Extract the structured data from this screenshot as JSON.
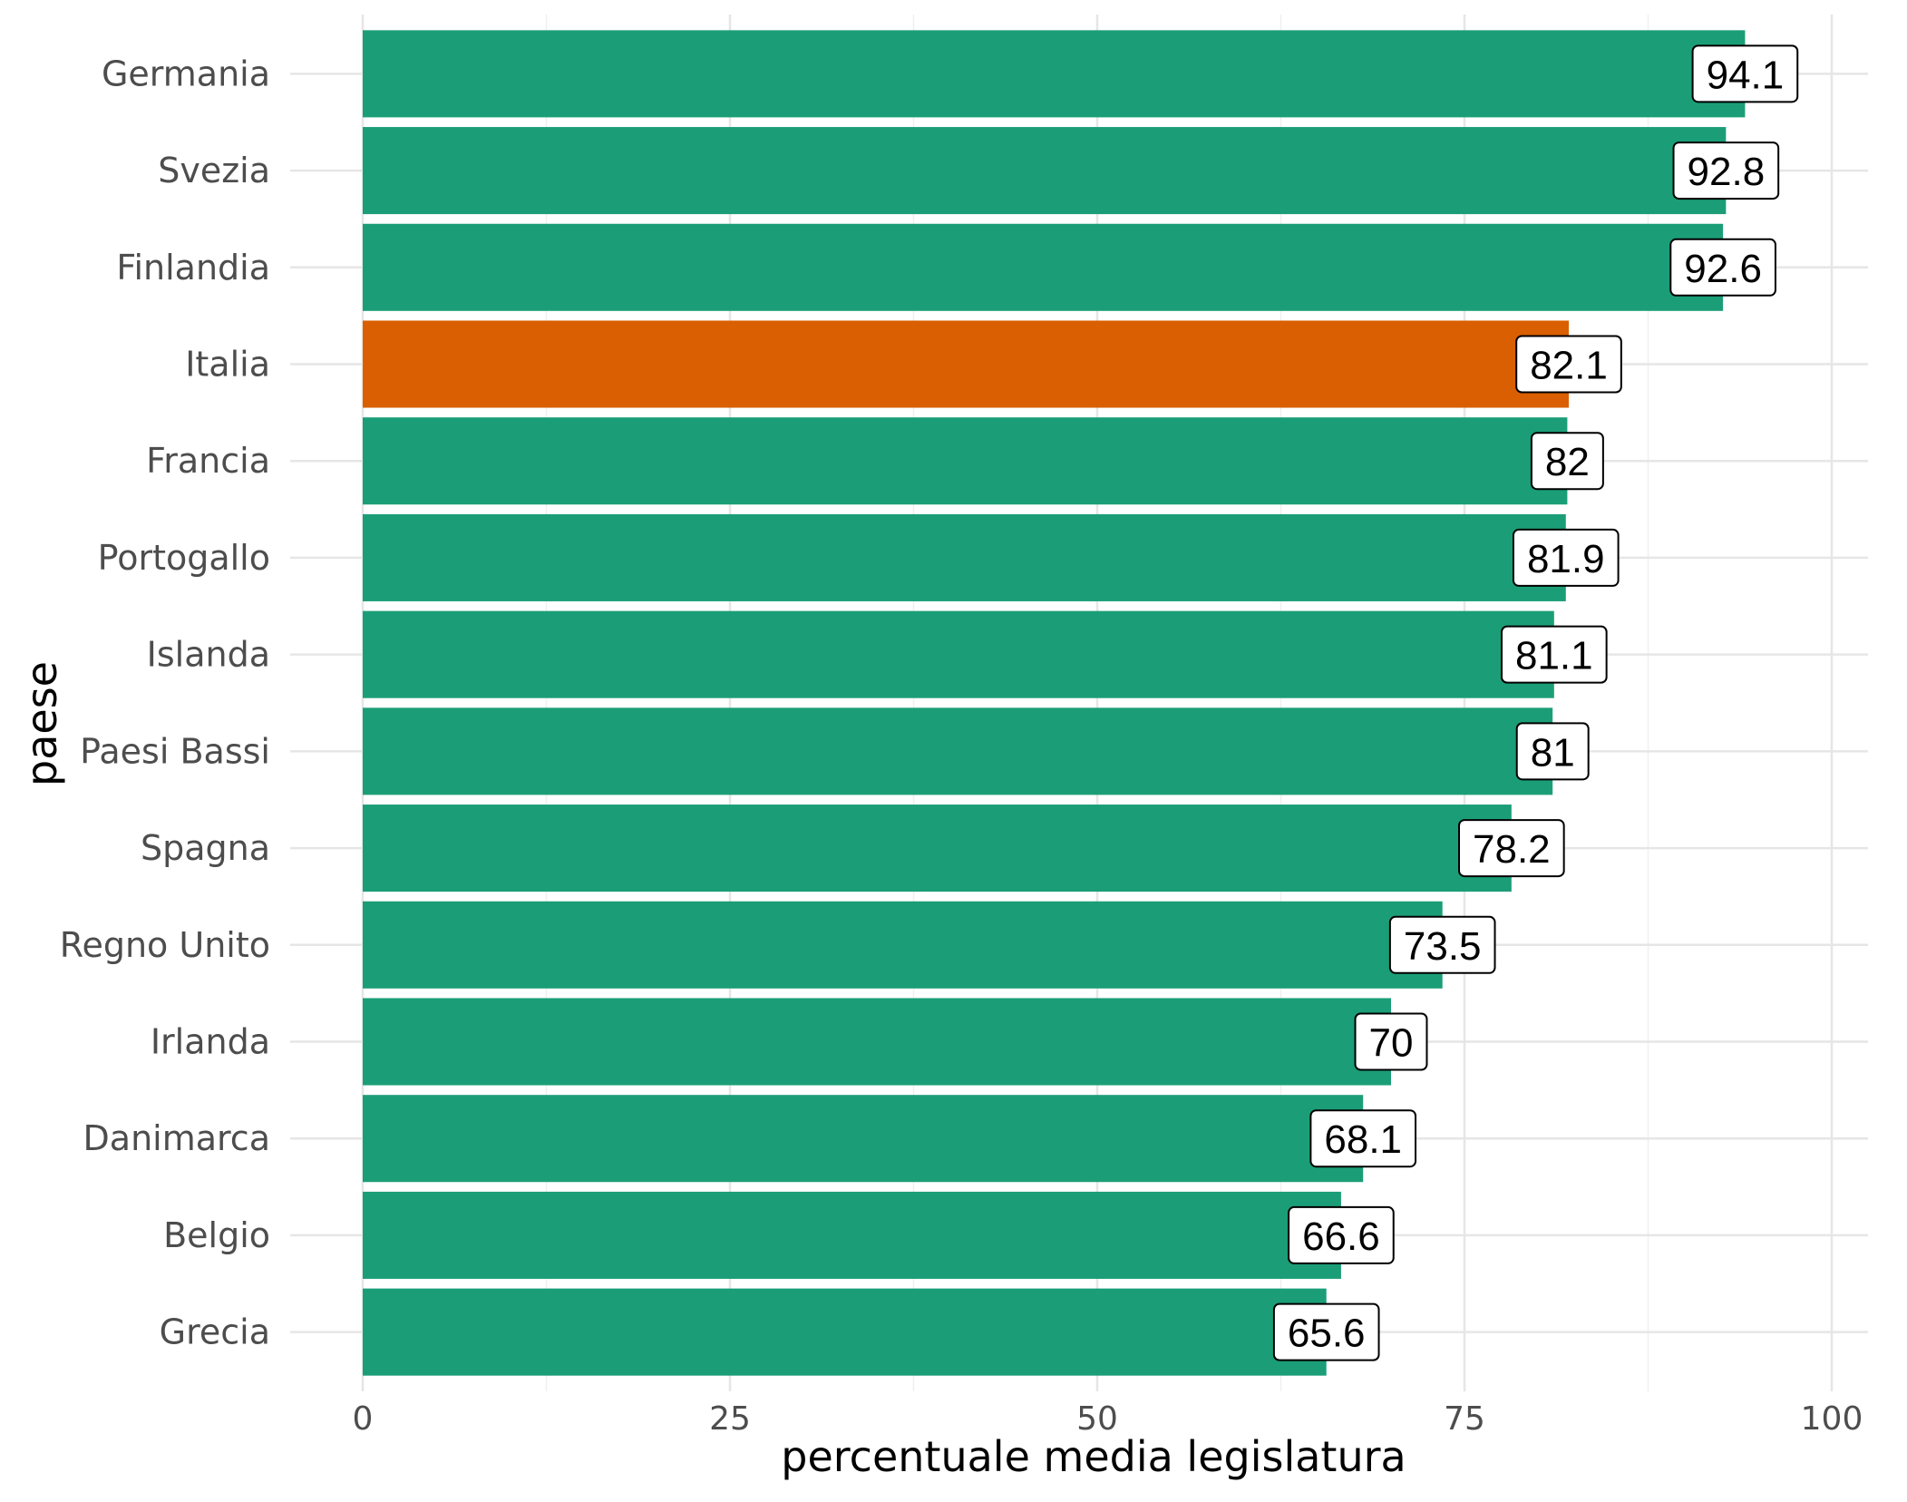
{
  "chart_data": {
    "type": "bar",
    "orientation": "horizontal",
    "categories": [
      "Germania",
      "Svezia",
      "Finlandia",
      "Italia",
      "Francia",
      "Portogallo",
      "Islanda",
      "Paesi Bassi",
      "Spagna",
      "Regno Unito",
      "Irlanda",
      "Danimarca",
      "Belgio",
      "Grecia"
    ],
    "values": [
      94.1,
      92.8,
      92.6,
      82.1,
      82,
      81.9,
      81.1,
      81,
      78.2,
      73.5,
      70,
      68.1,
      66.6,
      65.6
    ],
    "value_labels": [
      "94.1",
      "92.8",
      "92.6",
      "82.1",
      "82",
      "81.9",
      "81.1",
      "81",
      "78.2",
      "73.5",
      "70",
      "68.1",
      "66.6",
      "65.6"
    ],
    "highlight": "Italia",
    "colors": {
      "default": "#1b9e77",
      "highlight": "#d95f02"
    },
    "xlabel": "percentuale media legislatura",
    "ylabel": "paese",
    "xlim": [
      0,
      100
    ],
    "xticks": [
      0,
      25,
      50,
      75,
      100
    ],
    "xtick_labels": [
      "0",
      "25",
      "50",
      "75",
      "100"
    ],
    "grid": true,
    "legend": "none"
  }
}
